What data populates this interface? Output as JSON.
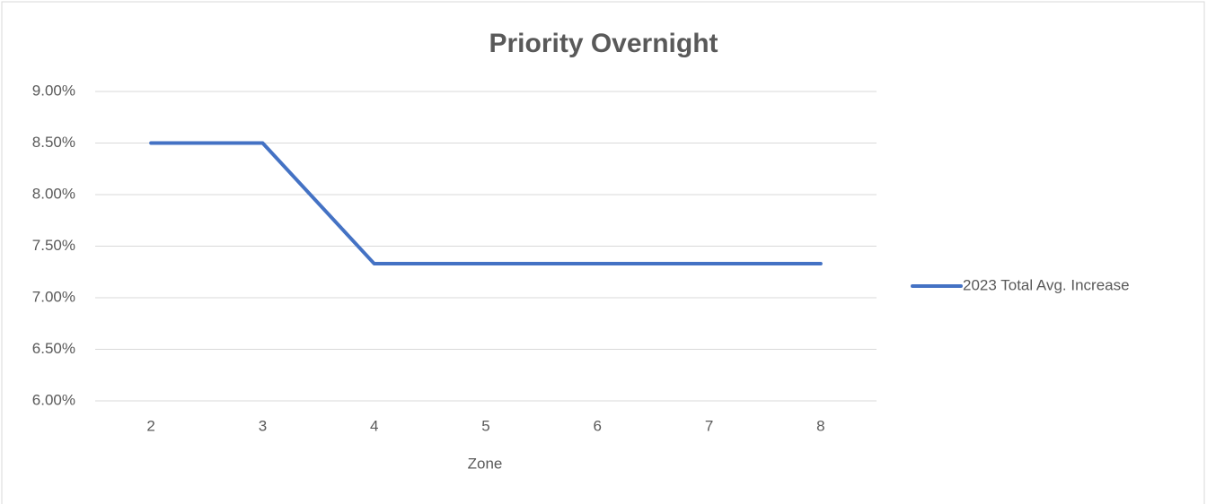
{
  "chart_data": {
    "type": "line",
    "title": "Priority Overnight",
    "x_label": "Zone",
    "categories": [
      "2",
      "3",
      "4",
      "5",
      "6",
      "7",
      "8"
    ],
    "series": [
      {
        "name": "2023 Total Avg. Increase",
        "color": "#4472c4",
        "values": [
          8.5,
          8.5,
          7.33,
          7.33,
          7.33,
          7.33,
          7.33
        ]
      }
    ],
    "ylim": [
      6,
      9
    ],
    "yticks": [
      {
        "value": 6,
        "label": "6.00%"
      },
      {
        "value": 6.5,
        "label": "6.50%"
      },
      {
        "value": 7,
        "label": "7.00%"
      },
      {
        "value": 7.5,
        "label": "7.50%"
      },
      {
        "value": 8,
        "label": "8.00%"
      },
      {
        "value": 8.5,
        "label": "8.50%"
      },
      {
        "value": 9,
        "label": "9.00%"
      }
    ],
    "grid": true,
    "legend": "right"
  }
}
